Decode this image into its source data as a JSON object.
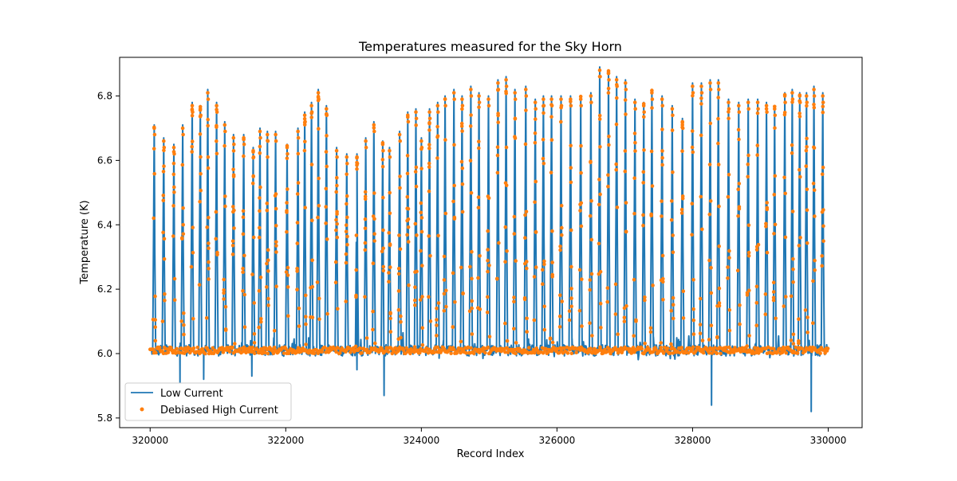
{
  "chart_data": {
    "type": "line",
    "title": "Temperatures measured for the Sky Horn",
    "xlabel": "Record Index",
    "ylabel": "Temperature (K)",
    "xlim": [
      319550,
      330500
    ],
    "ylim": [
      5.77,
      6.92
    ],
    "xticks": [
      320000,
      322000,
      324000,
      326000,
      328000,
      330000
    ],
    "xtick_labels": [
      "320000",
      "322000",
      "324000",
      "326000",
      "328000",
      "330000"
    ],
    "yticks": [
      5.8,
      6.0,
      6.2,
      6.4,
      6.6,
      6.8
    ],
    "ytick_labels": [
      "5.8",
      "6.0",
      "6.2",
      "6.4",
      "6.6",
      "6.8"
    ],
    "grid": false,
    "legend_position": "lower-left",
    "colors": {
      "low_current": "#1f77b4",
      "high_current": "#ff7f0e"
    },
    "series": [
      {
        "name": "Low Current",
        "style": "line",
        "baseline": 6.01,
        "x_start": 320000,
        "x_end": 330000,
        "peaks": [
          {
            "x": 320060,
            "y": 6.71
          },
          {
            "x": 320200,
            "y": 6.67
          },
          {
            "x": 320350,
            "y": 6.65
          },
          {
            "x": 320480,
            "y": 6.71
          },
          {
            "x": 320620,
            "y": 6.78
          },
          {
            "x": 320740,
            "y": 6.77
          },
          {
            "x": 320850,
            "y": 6.82
          },
          {
            "x": 320980,
            "y": 6.78
          },
          {
            "x": 321100,
            "y": 6.72
          },
          {
            "x": 321230,
            "y": 6.68
          },
          {
            "x": 321380,
            "y": 6.68
          },
          {
            "x": 321520,
            "y": 6.64
          },
          {
            "x": 321620,
            "y": 6.7
          },
          {
            "x": 321730,
            "y": 6.69
          },
          {
            "x": 321850,
            "y": 6.69
          },
          {
            "x": 322020,
            "y": 6.65
          },
          {
            "x": 322180,
            "y": 6.7
          },
          {
            "x": 322280,
            "y": 6.75
          },
          {
            "x": 322380,
            "y": 6.78
          },
          {
            "x": 322480,
            "y": 6.82
          },
          {
            "x": 322600,
            "y": 6.77
          },
          {
            "x": 322750,
            "y": 6.64
          },
          {
            "x": 322900,
            "y": 6.62
          },
          {
            "x": 323050,
            "y": 6.62
          },
          {
            "x": 323180,
            "y": 6.67
          },
          {
            "x": 323300,
            "y": 6.72
          },
          {
            "x": 323430,
            "y": 6.66
          },
          {
            "x": 323530,
            "y": 6.64
          },
          {
            "x": 323680,
            "y": 6.69
          },
          {
            "x": 323800,
            "y": 6.75
          },
          {
            "x": 323920,
            "y": 6.76
          },
          {
            "x": 324000,
            "y": 6.67
          },
          {
            "x": 324120,
            "y": 6.76
          },
          {
            "x": 324240,
            "y": 6.78
          },
          {
            "x": 324350,
            "y": 6.8
          },
          {
            "x": 324480,
            "y": 6.82
          },
          {
            "x": 324600,
            "y": 6.8
          },
          {
            "x": 324730,
            "y": 6.83
          },
          {
            "x": 324850,
            "y": 6.81
          },
          {
            "x": 324990,
            "y": 6.8
          },
          {
            "x": 325130,
            "y": 6.85
          },
          {
            "x": 325250,
            "y": 6.86
          },
          {
            "x": 325380,
            "y": 6.82
          },
          {
            "x": 325540,
            "y": 6.83
          },
          {
            "x": 325680,
            "y": 6.79
          },
          {
            "x": 325800,
            "y": 6.8
          },
          {
            "x": 325920,
            "y": 6.8
          },
          {
            "x": 326060,
            "y": 6.8
          },
          {
            "x": 326200,
            "y": 6.8
          },
          {
            "x": 326350,
            "y": 6.8
          },
          {
            "x": 326500,
            "y": 6.81
          },
          {
            "x": 326630,
            "y": 6.89
          },
          {
            "x": 326760,
            "y": 6.88
          },
          {
            "x": 326880,
            "y": 6.86
          },
          {
            "x": 327010,
            "y": 6.85
          },
          {
            "x": 327150,
            "y": 6.79
          },
          {
            "x": 327280,
            "y": 6.78
          },
          {
            "x": 327400,
            "y": 6.82
          },
          {
            "x": 327550,
            "y": 6.8
          },
          {
            "x": 327700,
            "y": 6.77
          },
          {
            "x": 327850,
            "y": 6.73
          },
          {
            "x": 328000,
            "y": 6.84
          },
          {
            "x": 328130,
            "y": 6.84
          },
          {
            "x": 328260,
            "y": 6.85
          },
          {
            "x": 328380,
            "y": 6.85
          },
          {
            "x": 328530,
            "y": 6.79
          },
          {
            "x": 328680,
            "y": 6.78
          },
          {
            "x": 328820,
            "y": 6.79
          },
          {
            "x": 328960,
            "y": 6.79
          },
          {
            "x": 329090,
            "y": 6.78
          },
          {
            "x": 329210,
            "y": 6.77
          },
          {
            "x": 329360,
            "y": 6.81
          },
          {
            "x": 329470,
            "y": 6.82
          },
          {
            "x": 329580,
            "y": 6.81
          },
          {
            "x": 329680,
            "y": 6.81
          },
          {
            "x": 329790,
            "y": 6.83
          },
          {
            "x": 329920,
            "y": 6.81
          }
        ],
        "dips": [
          {
            "x": 320440,
            "y": 5.91
          },
          {
            "x": 320790,
            "y": 5.92
          },
          {
            "x": 321500,
            "y": 5.93
          },
          {
            "x": 323050,
            "y": 5.95
          },
          {
            "x": 323450,
            "y": 5.87
          },
          {
            "x": 328280,
            "y": 5.84
          },
          {
            "x": 329750,
            "y": 5.82
          }
        ]
      },
      {
        "name": "Debiased High Current",
        "style": "points",
        "note_peaks": "points sampled along each Low Current peak"
      }
    ]
  }
}
